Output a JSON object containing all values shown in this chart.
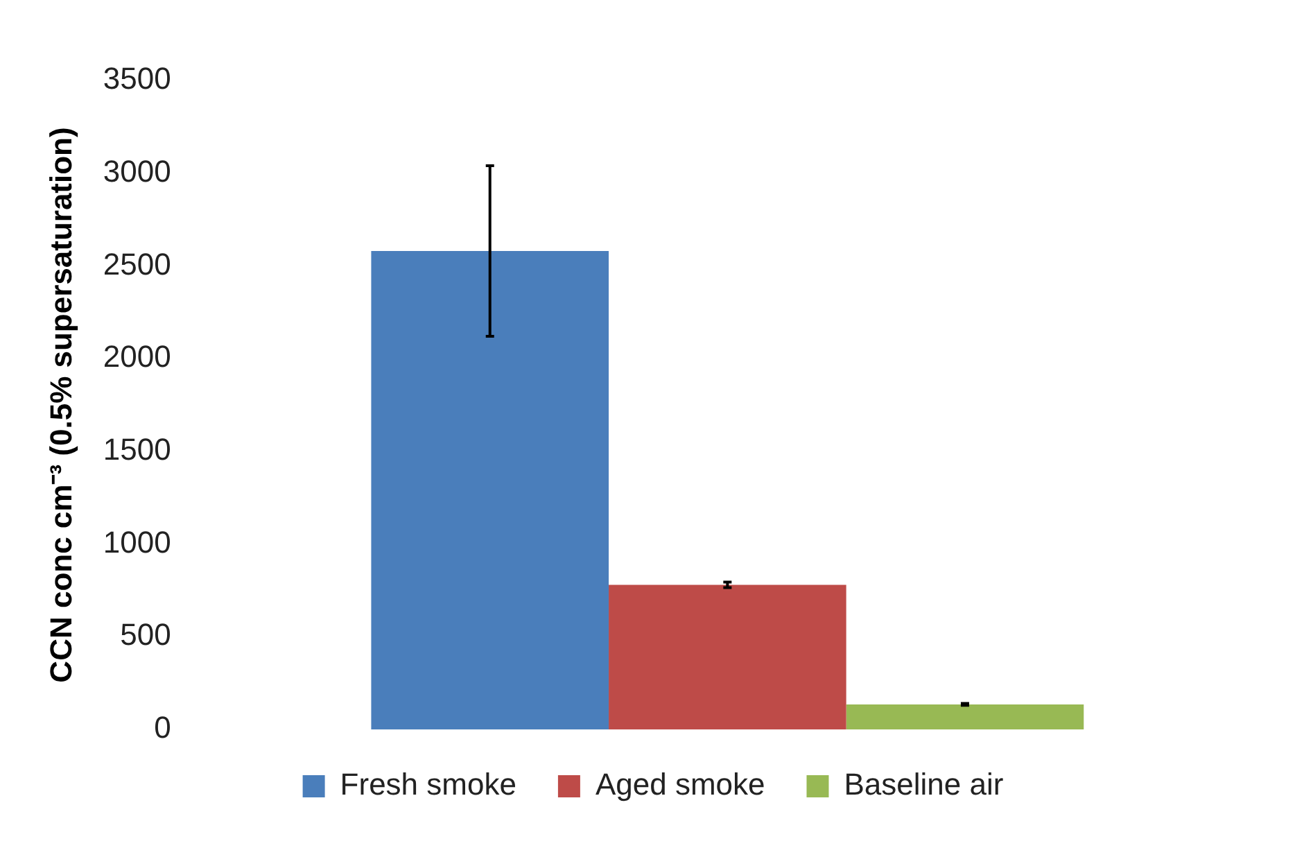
{
  "chart_data": {
    "type": "bar",
    "ylabel": "CCN conc cm⁻³ (0.5% supersaturation)",
    "categories": [
      null
    ],
    "series": [
      {
        "name": "Fresh smoke",
        "color": "#4a7ebb",
        "values": [
          2580
        ],
        "errors": [
          460
        ]
      },
      {
        "name": "Aged smoke",
        "color": "#be4b48",
        "values": [
          780
        ],
        "errors": [
          15
        ]
      },
      {
        "name": "Baseline air",
        "color": "#98b954",
        "values": [
          135
        ],
        "errors": [
          5
        ]
      }
    ],
    "ylim": [
      0,
      3500
    ],
    "yticks": [
      0,
      500,
      1000,
      1500,
      2000,
      2500,
      3000,
      3500
    ],
    "grid": false,
    "legend": "bottom"
  }
}
